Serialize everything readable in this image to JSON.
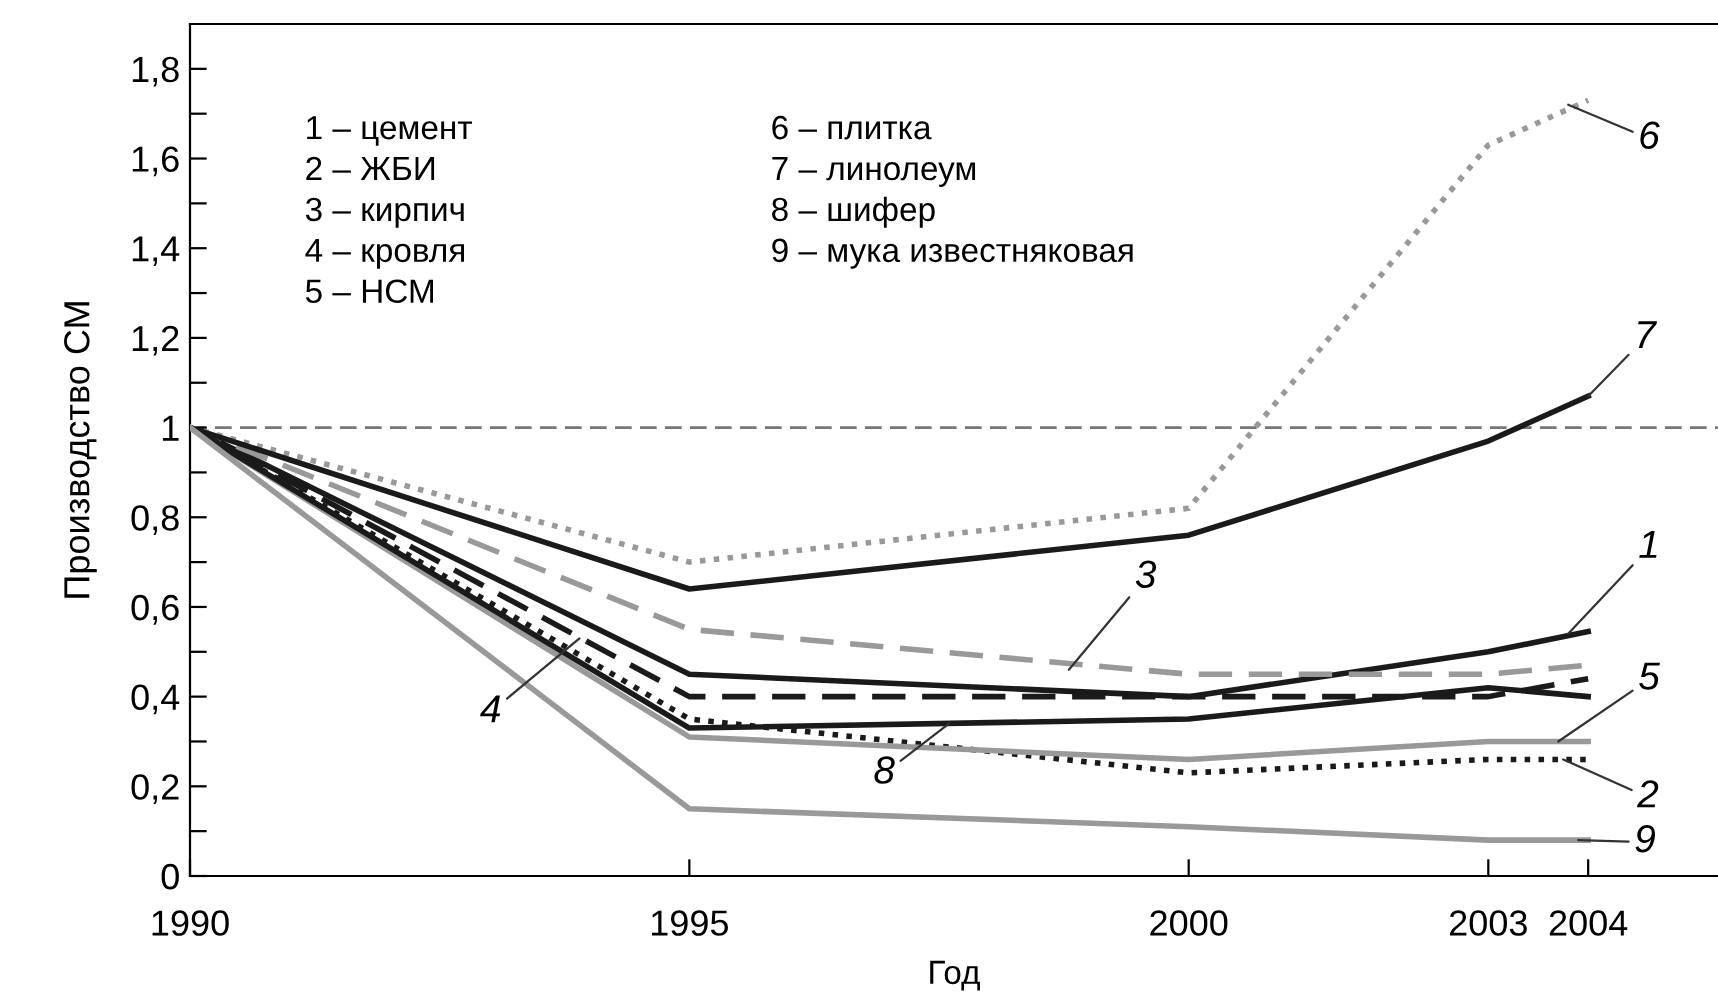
{
  "chart_data": {
    "type": "line",
    "xlabel": "Год",
    "ylabel": "Производство СМ",
    "x": [
      1990,
      1995,
      2000,
      2003,
      2004
    ],
    "xlim": [
      1990,
      2005.3
    ],
    "xticks": [
      1990,
      1995,
      2000,
      2003,
      2004
    ],
    "ylim": [
      0,
      1.9
    ],
    "yticks": [
      0,
      {
        "value": 0.1,
        "label": null
      },
      {
        "value": 0.2,
        "label": "0,2"
      },
      {
        "value": 0.3,
        "label": null
      },
      {
        "value": 0.4,
        "label": "0,4"
      },
      {
        "value": 0.5,
        "label": null
      },
      {
        "value": 0.6,
        "label": "0,6"
      },
      {
        "value": 0.7,
        "label": null
      },
      {
        "value": 0.8,
        "label": "0,8"
      },
      {
        "value": 0.9,
        "label": null
      },
      1,
      {
        "value": 1.1,
        "label": null
      },
      {
        "value": 1.2,
        "label": "1,2"
      },
      {
        "value": 1.3,
        "label": null
      },
      {
        "value": 1.4,
        "label": "1,4"
      },
      {
        "value": 1.5,
        "label": null
      },
      {
        "value": 1.6,
        "label": "1,6"
      },
      {
        "value": 1.7,
        "label": null
      },
      {
        "value": 1.8,
        "label": "1,8"
      }
    ],
    "grid": false,
    "marker": "none",
    "ref_lines": [
      {
        "axis": "y",
        "value": 1,
        "color": "#777777",
        "line_style": "dashed"
      }
    ],
    "series": [
      {
        "color": "#1a1a1a",
        "line_style": "solid",
        "values": [
          1,
          0.45,
          0.4,
          0.5,
          0.545
        ]
      },
      {
        "color": "#1a1a1a",
        "line_style": "dotted",
        "values": [
          1,
          0.35,
          0.23,
          0.26,
          0.26
        ]
      },
      {
        "color": "#999999",
        "line_style": "dashed",
        "values": [
          1,
          0.55,
          0.45,
          0.45,
          0.47
        ]
      },
      {
        "color": "#1a1a1a",
        "line_style": "dashed",
        "values": [
          1,
          0.4,
          0.4,
          0.4,
          0.44
        ]
      },
      {
        "color": "#999999",
        "line_style": "solid",
        "values": [
          1,
          0.31,
          0.26,
          0.3,
          0.3
        ]
      },
      {
        "color": "#999999",
        "line_style": "dotted",
        "values": [
          1,
          0.7,
          0.82,
          1.63,
          1.73
        ]
      },
      {
        "color": "#1a1a1a",
        "line_style": "solid",
        "values": [
          1,
          0.64,
          0.76,
          0.97,
          1.07
        ]
      },
      {
        "color": "#1a1a1a",
        "line_style": "solid",
        "values": [
          1,
          0.33,
          0.35,
          0.42,
          0.4
        ]
      },
      {
        "color": "#999999",
        "line_style": "solid",
        "values": [
          1,
          0.15,
          0.11,
          0.08,
          0.08
        ]
      }
    ],
    "annotations": [
      "1 – цемент",
      "2 – ЖБИ",
      "3 – кирпич",
      "4 – кровля",
      "5 – НСМ",
      "6 – плитка",
      "7 – линолеум",
      "8 – шифер",
      "9 – мука известняковая",
      {
        "text": "6",
        "x": 2003.8,
        "y": 1.72
      },
      {
        "text": "7",
        "x": 2004,
        "y": 1.07
      },
      {
        "text": "3",
        "x": 1998.8,
        "y": 0.46
      },
      {
        "text": "1",
        "x": 2003.8,
        "y": 0.54
      },
      {
        "text": "5",
        "x": 2003.7,
        "y": 0.3
      },
      {
        "text": "2",
        "x": 2003.75,
        "y": 0.26
      },
      {
        "text": "9",
        "x": 2003.9,
        "y": 0.08
      },
      {
        "text": "4",
        "x": 1993.9,
        "y": 0.53
      },
      {
        "text": "8",
        "x": 1997.6,
        "y": 0.34
      }
    ]
  }
}
